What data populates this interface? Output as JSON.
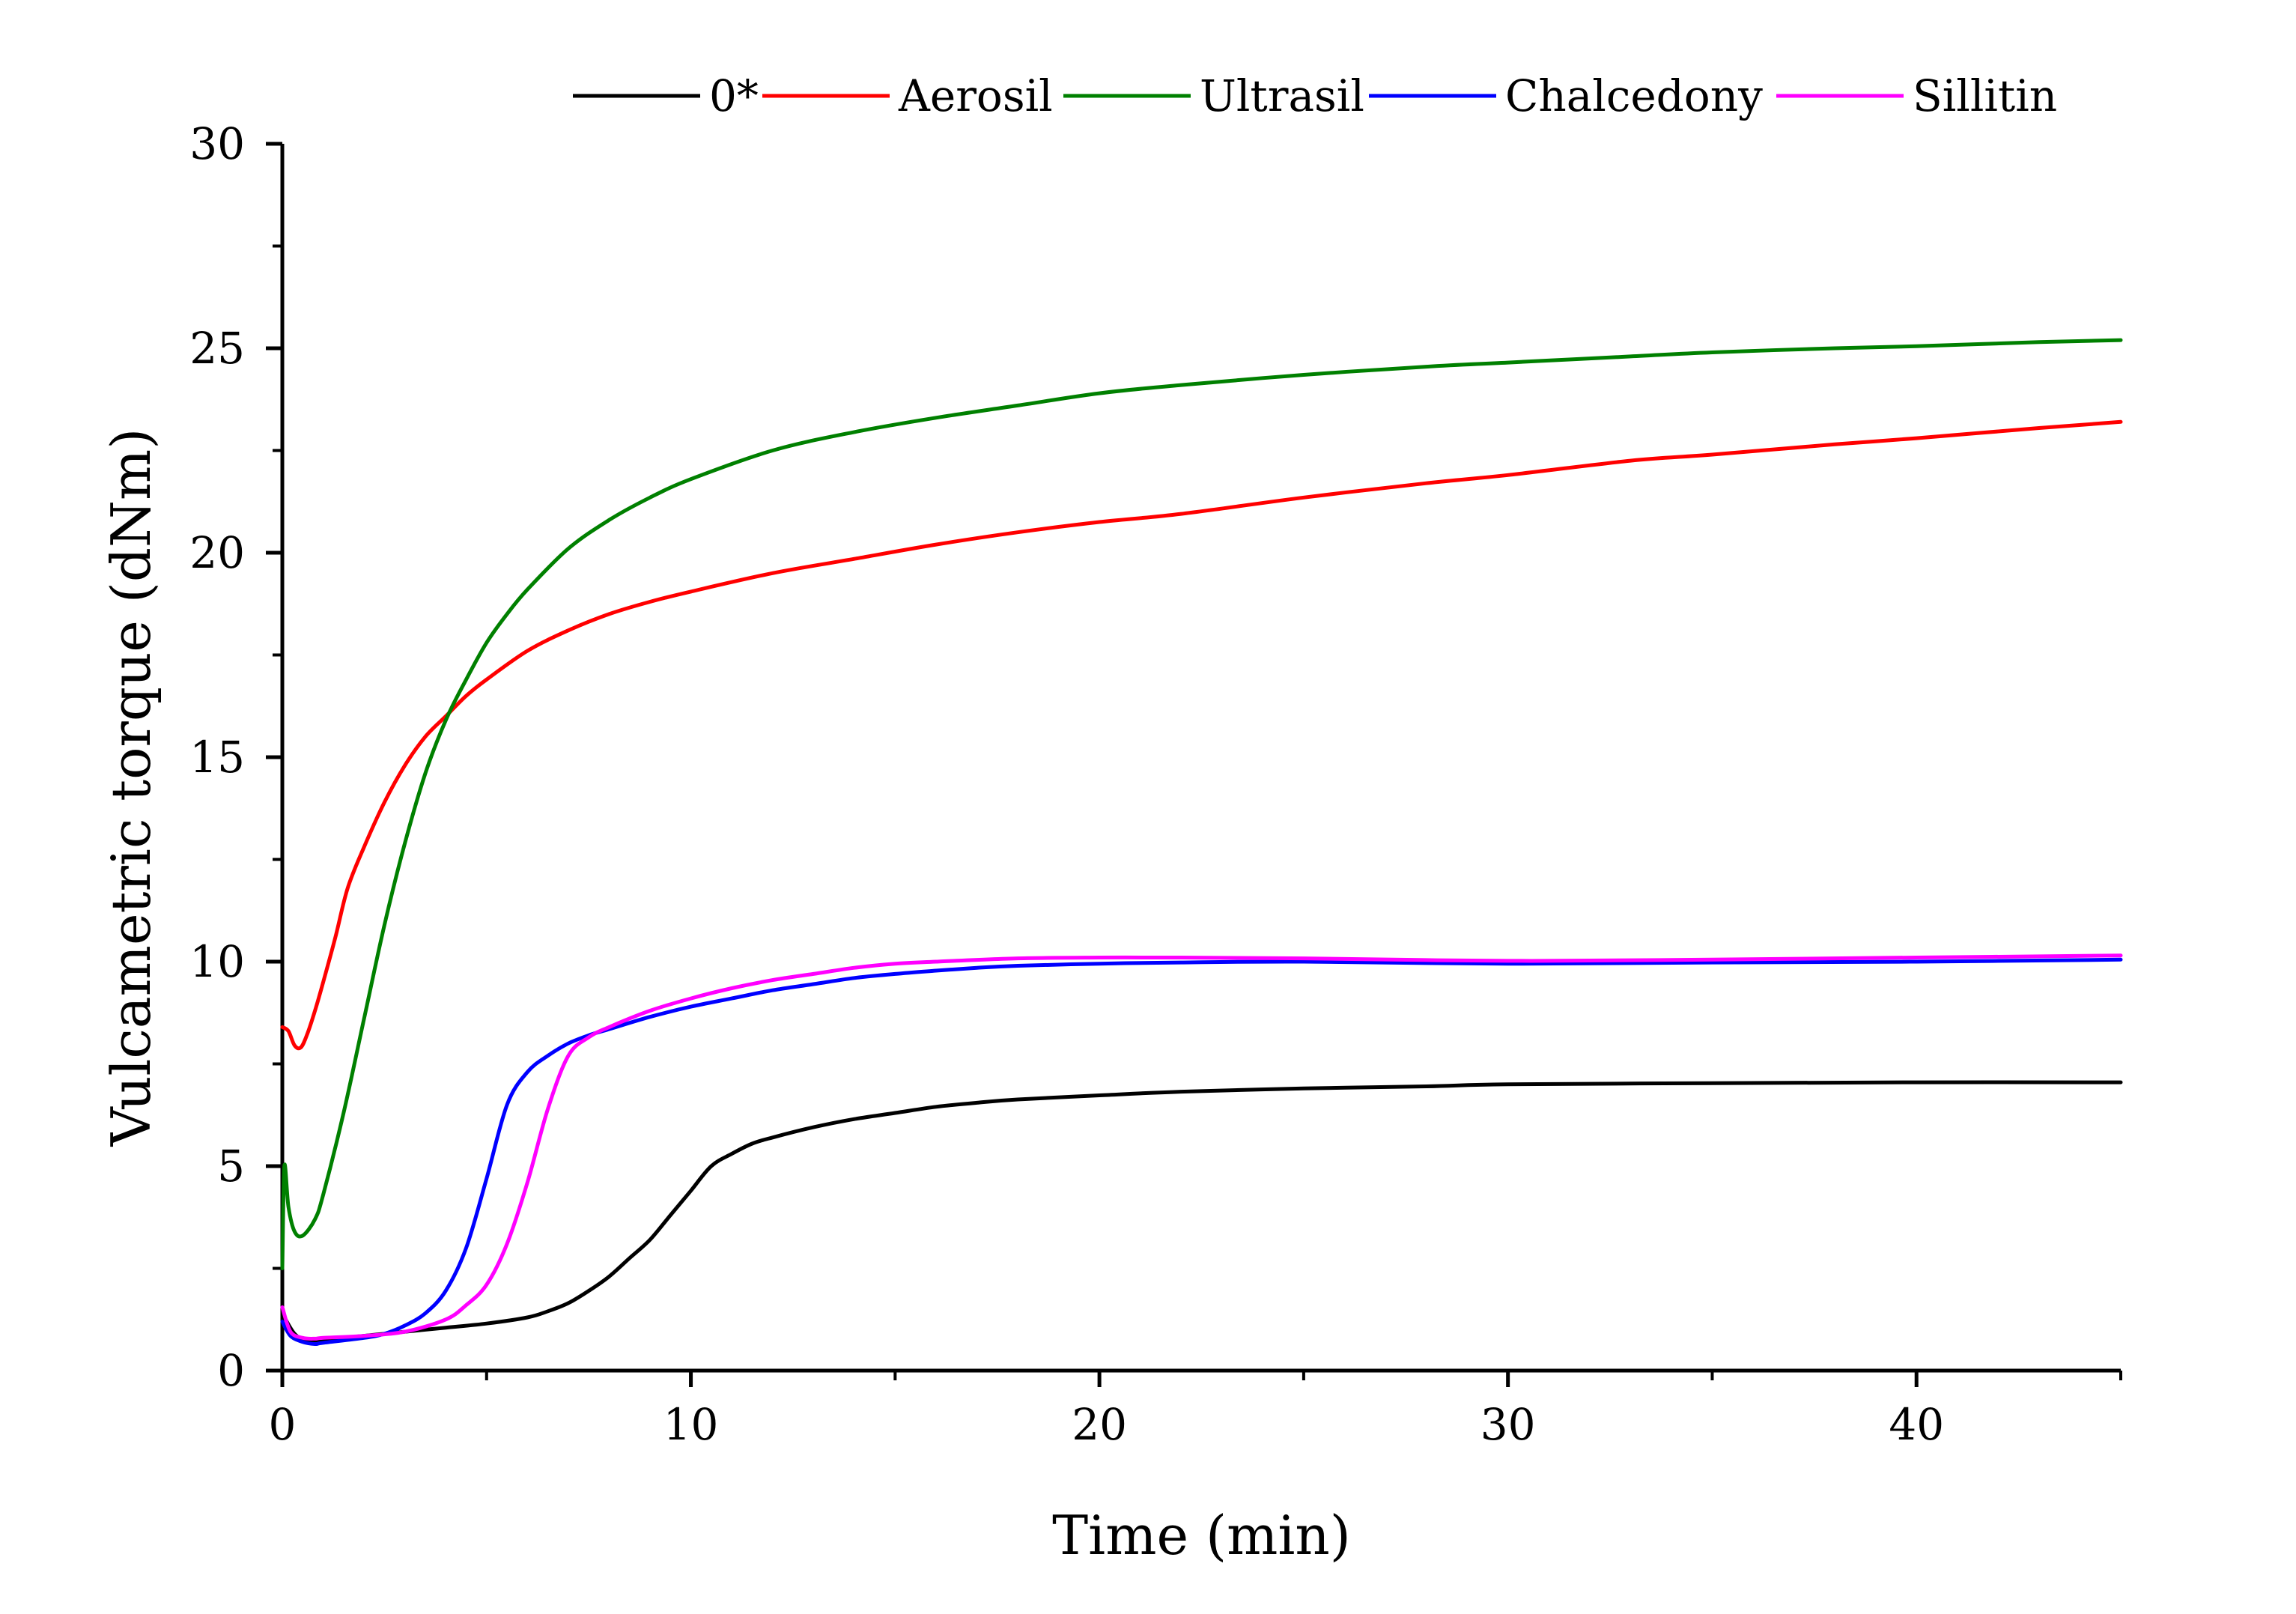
{
  "chart_data": {
    "type": "line",
    "title": "",
    "xlabel": "Time (min)",
    "ylabel": "Vulcametric torque (dNm)",
    "xlim": [
      0,
      45
    ],
    "ylim": [
      0,
      30
    ],
    "x_ticks": [
      0,
      10,
      20,
      30,
      40
    ],
    "x_tick_labels": [
      "0",
      "10",
      "20",
      "30",
      "40"
    ],
    "x_minor_ticks": [
      5,
      15,
      25,
      35,
      45
    ],
    "y_ticks": [
      0,
      5,
      10,
      15,
      20,
      25,
      30
    ],
    "y_tick_labels": [
      "0",
      "5",
      "10",
      "15",
      "20",
      "25",
      "30"
    ],
    "y_minor_ticks": [
      2.5,
      7.5,
      12.5,
      17.5,
      22.5,
      27.5
    ],
    "grid": false,
    "legend_position": "top",
    "series": [
      {
        "name": "0*",
        "color": "#000000",
        "points": [
          [
            0,
            1.4
          ],
          [
            0.3,
            0.9
          ],
          [
            0.6,
            0.75
          ],
          [
            1,
            0.75
          ],
          [
            2,
            0.85
          ],
          [
            3,
            0.95
          ],
          [
            4,
            1.05
          ],
          [
            5,
            1.15
          ],
          [
            6,
            1.3
          ],
          [
            6.5,
            1.45
          ],
          [
            7,
            1.65
          ],
          [
            7.5,
            1.95
          ],
          [
            8,
            2.3
          ],
          [
            8.5,
            2.75
          ],
          [
            9,
            3.2
          ],
          [
            9.5,
            3.8
          ],
          [
            10,
            4.4
          ],
          [
            10.5,
            5.0
          ],
          [
            11,
            5.3
          ],
          [
            11.5,
            5.55
          ],
          [
            12,
            5.7
          ],
          [
            13,
            5.95
          ],
          [
            14,
            6.15
          ],
          [
            15,
            6.3
          ],
          [
            16,
            6.45
          ],
          [
            17,
            6.55
          ],
          [
            18,
            6.63
          ],
          [
            20,
            6.73
          ],
          [
            22,
            6.82
          ],
          [
            25,
            6.9
          ],
          [
            28,
            6.95
          ],
          [
            30,
            7.0
          ],
          [
            35,
            7.03
          ],
          [
            40,
            7.05
          ],
          [
            45,
            7.05
          ]
        ]
      },
      {
        "name": "Aerosil",
        "color": "#ff0000",
        "points": [
          [
            0,
            8.4
          ],
          [
            0.15,
            8.3
          ],
          [
            0.3,
            7.95
          ],
          [
            0.45,
            7.9
          ],
          [
            0.6,
            8.2
          ],
          [
            0.8,
            8.8
          ],
          [
            1,
            9.5
          ],
          [
            1.3,
            10.6
          ],
          [
            1.6,
            11.8
          ],
          [
            2,
            12.8
          ],
          [
            2.5,
            13.9
          ],
          [
            3,
            14.8
          ],
          [
            3.5,
            15.5
          ],
          [
            4,
            16.0
          ],
          [
            4.5,
            16.5
          ],
          [
            5,
            16.9
          ],
          [
            6,
            17.6
          ],
          [
            7,
            18.1
          ],
          [
            8,
            18.5
          ],
          [
            9,
            18.8
          ],
          [
            10,
            19.05
          ],
          [
            12,
            19.5
          ],
          [
            14,
            19.85
          ],
          [
            16,
            20.2
          ],
          [
            18,
            20.5
          ],
          [
            20,
            20.75
          ],
          [
            22,
            20.95
          ],
          [
            25,
            21.35
          ],
          [
            28,
            21.7
          ],
          [
            30,
            21.9
          ],
          [
            33,
            22.25
          ],
          [
            35,
            22.4
          ],
          [
            38,
            22.65
          ],
          [
            40,
            22.8
          ],
          [
            43,
            23.05
          ],
          [
            45,
            23.2
          ]
        ]
      },
      {
        "name": "Ultrasil",
        "color": "#008000",
        "points": [
          [
            0,
            2.5
          ],
          [
            0.05,
            5.0
          ],
          [
            0.15,
            4.0
          ],
          [
            0.3,
            3.4
          ],
          [
            0.5,
            3.3
          ],
          [
            0.8,
            3.7
          ],
          [
            1,
            4.3
          ],
          [
            1.5,
            6.3
          ],
          [
            2,
            8.6
          ],
          [
            2.5,
            10.9
          ],
          [
            3,
            12.9
          ],
          [
            3.5,
            14.6
          ],
          [
            4,
            15.9
          ],
          [
            4.5,
            16.9
          ],
          [
            5,
            17.8
          ],
          [
            5.5,
            18.5
          ],
          [
            6,
            19.1
          ],
          [
            7,
            20.1
          ],
          [
            8,
            20.8
          ],
          [
            9,
            21.35
          ],
          [
            10,
            21.8
          ],
          [
            12,
            22.5
          ],
          [
            14,
            22.95
          ],
          [
            16,
            23.3
          ],
          [
            18,
            23.6
          ],
          [
            20,
            23.9
          ],
          [
            22,
            24.1
          ],
          [
            25,
            24.35
          ],
          [
            28,
            24.55
          ],
          [
            30,
            24.65
          ],
          [
            33,
            24.8
          ],
          [
            35,
            24.9
          ],
          [
            38,
            25.0
          ],
          [
            40,
            25.05
          ],
          [
            43,
            25.15
          ],
          [
            45,
            25.2
          ]
        ]
      },
      {
        "name": "Chalcedony",
        "color": "#0000ff",
        "points": [
          [
            0,
            1.2
          ],
          [
            0.2,
            0.85
          ],
          [
            0.5,
            0.7
          ],
          [
            0.8,
            0.65
          ],
          [
            1,
            0.68
          ],
          [
            2,
            0.8
          ],
          [
            2.5,
            0.9
          ],
          [
            3,
            1.1
          ],
          [
            3.5,
            1.4
          ],
          [
            4,
            1.95
          ],
          [
            4.5,
            3.0
          ],
          [
            5,
            4.7
          ],
          [
            5.5,
            6.5
          ],
          [
            6,
            7.3
          ],
          [
            6.5,
            7.7
          ],
          [
            7,
            8.0
          ],
          [
            7.5,
            8.2
          ],
          [
            8,
            8.35
          ],
          [
            9,
            8.65
          ],
          [
            10,
            8.9
          ],
          [
            11,
            9.1
          ],
          [
            12,
            9.3
          ],
          [
            13,
            9.45
          ],
          [
            14,
            9.6
          ],
          [
            15,
            9.7
          ],
          [
            16,
            9.78
          ],
          [
            17,
            9.85
          ],
          [
            18,
            9.9
          ],
          [
            20,
            9.95
          ],
          [
            22,
            9.98
          ],
          [
            25,
            10.0
          ],
          [
            30,
            9.95
          ],
          [
            35,
            9.98
          ],
          [
            40,
            10.0
          ],
          [
            45,
            10.05
          ]
        ]
      },
      {
        "name": "Sillitin",
        "color": "#ff00ff",
        "points": [
          [
            0,
            1.55
          ],
          [
            0.2,
            0.95
          ],
          [
            0.5,
            0.8
          ],
          [
            0.8,
            0.78
          ],
          [
            1,
            0.8
          ],
          [
            2,
            0.85
          ],
          [
            3,
            0.95
          ],
          [
            4,
            1.25
          ],
          [
            4.5,
            1.6
          ],
          [
            5,
            2.1
          ],
          [
            5.5,
            3.1
          ],
          [
            6,
            4.6
          ],
          [
            6.5,
            6.4
          ],
          [
            7,
            7.7
          ],
          [
            7.5,
            8.15
          ],
          [
            8,
            8.4
          ],
          [
            9,
            8.8
          ],
          [
            10,
            9.1
          ],
          [
            11,
            9.35
          ],
          [
            12,
            9.55
          ],
          [
            13,
            9.7
          ],
          [
            14,
            9.85
          ],
          [
            15,
            9.95
          ],
          [
            16,
            10.0
          ],
          [
            18,
            10.08
          ],
          [
            20,
            10.1
          ],
          [
            22,
            10.1
          ],
          [
            25,
            10.08
          ],
          [
            30,
            10.02
          ],
          [
            35,
            10.05
          ],
          [
            40,
            10.1
          ],
          [
            45,
            10.15
          ]
        ]
      }
    ]
  }
}
